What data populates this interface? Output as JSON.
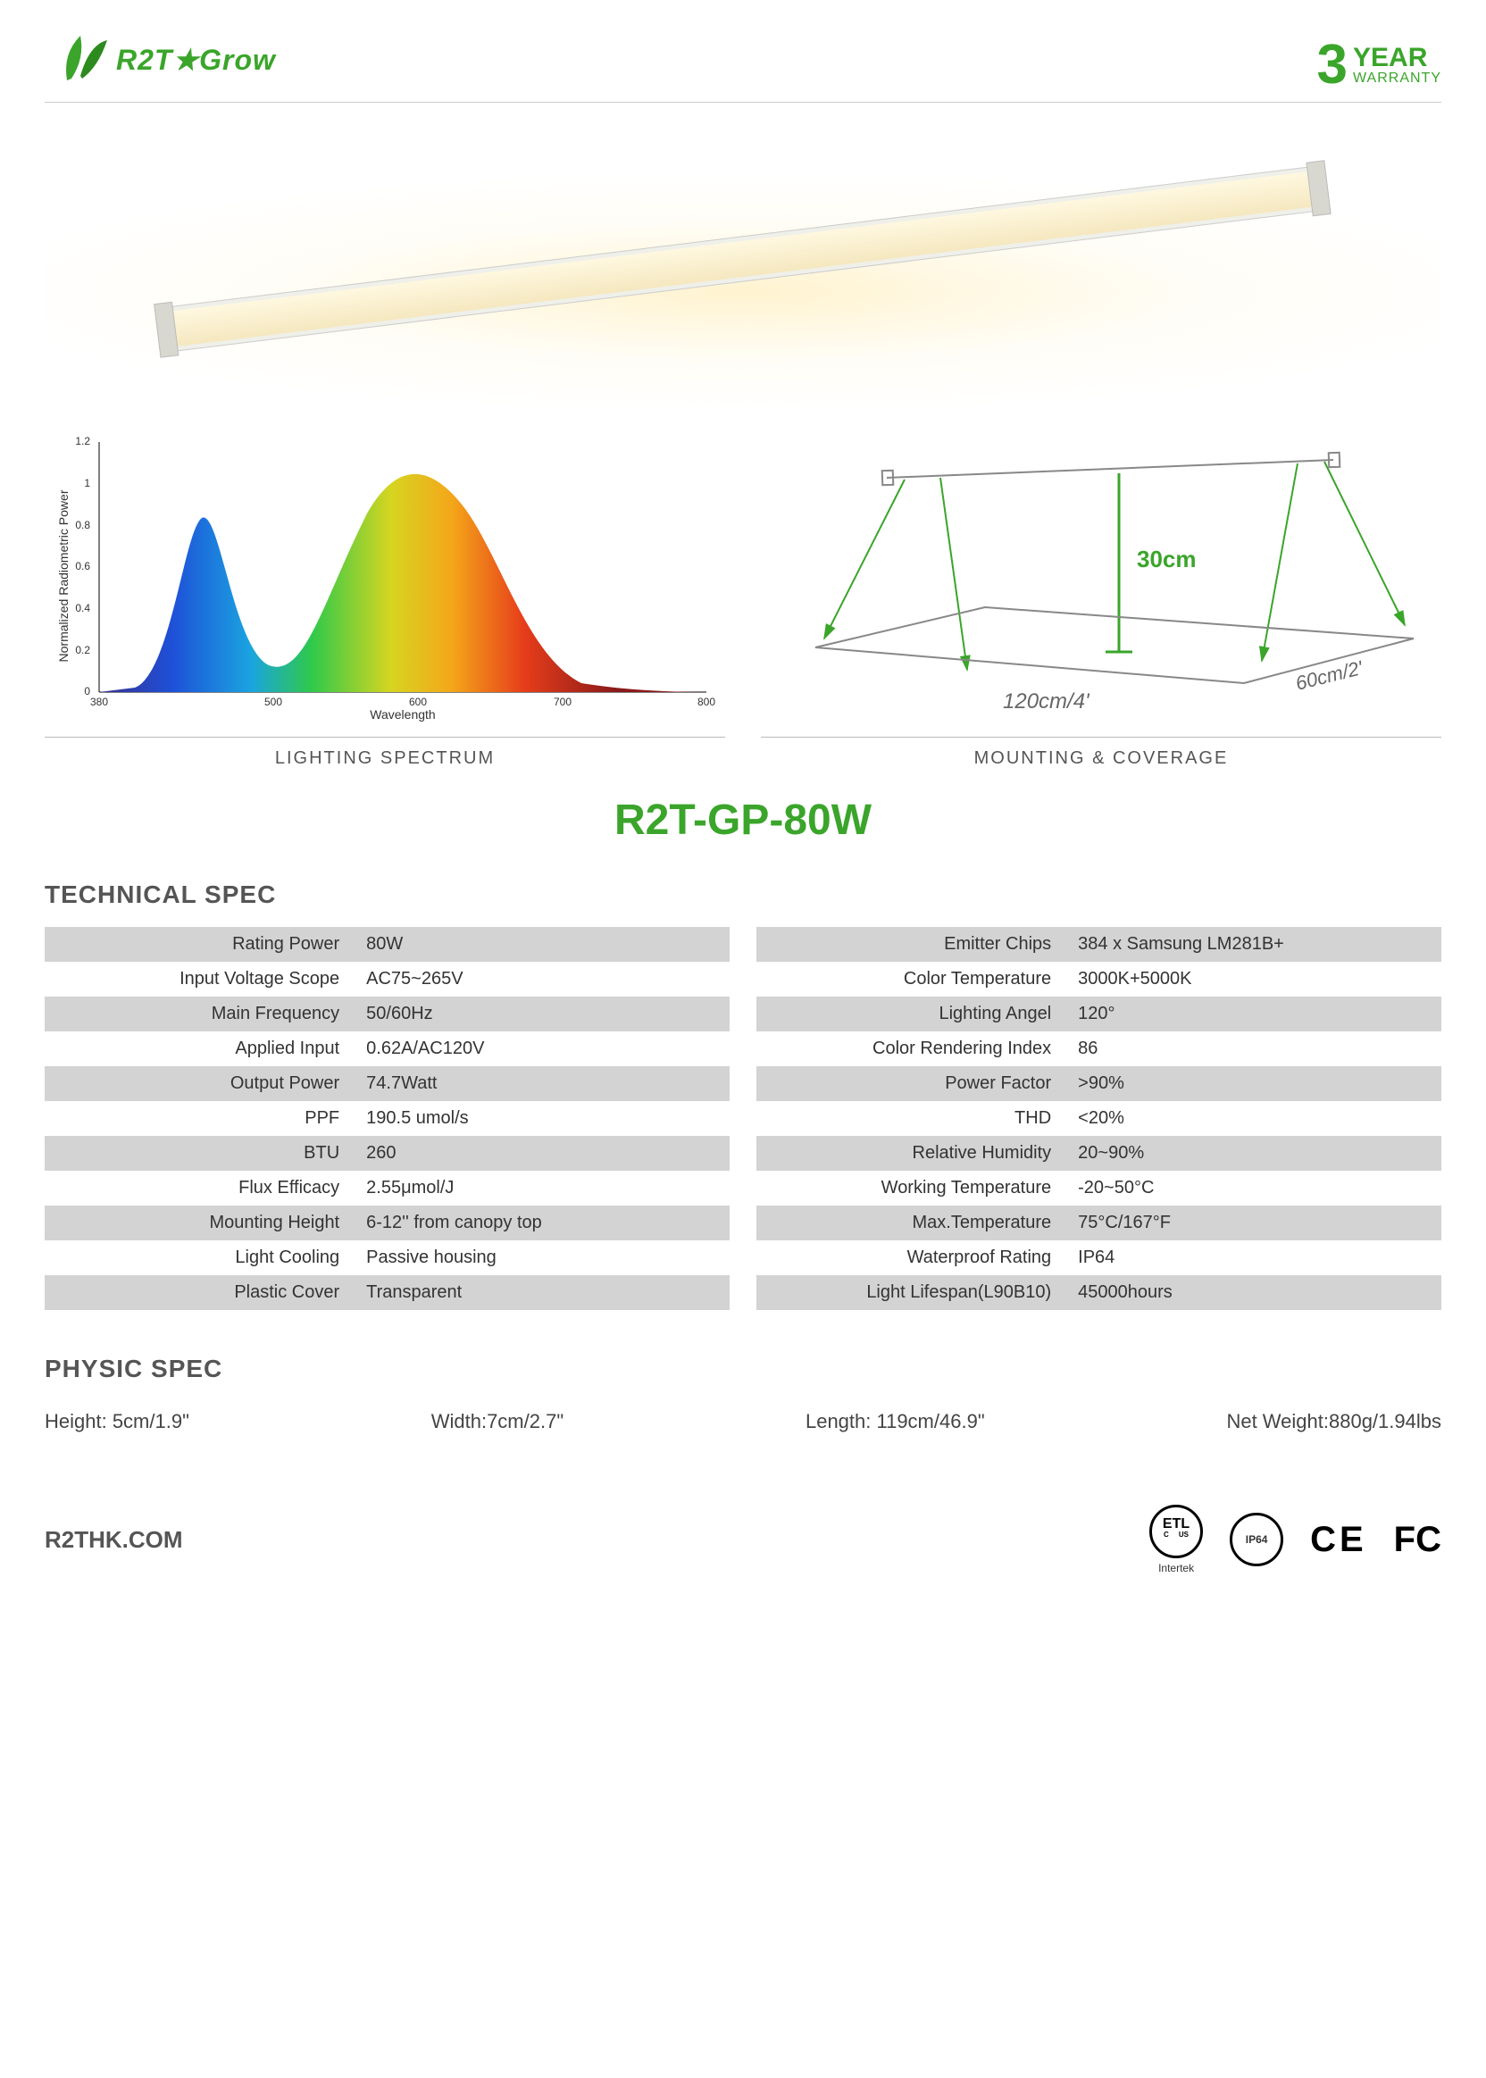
{
  "header": {
    "brand": "R2T★Grow",
    "warranty_num": "3",
    "warranty_year": "YEAR",
    "warranty_sub": "WARRANTY"
  },
  "diagrams": {
    "spectrum_caption": "LIGHTING SPECTRUM",
    "mounting_caption": "MOUNTING & COVERAGE",
    "spectrum": {
      "y_label": "Normalized Radiometric Power",
      "x_label": "Wavelength",
      "y_ticks": [
        "0",
        "0.2",
        "0.4",
        "0.6",
        "0.8",
        "1",
        "1.2"
      ],
      "x_ticks": [
        "380",
        "500",
        "600",
        "700",
        "800"
      ],
      "ylim": [
        0,
        1.2
      ],
      "xlim": [
        380,
        800
      ]
    },
    "mounting": {
      "height_label": "30cm",
      "width_label": "120cm/4'",
      "depth_label": "60cm/2'"
    }
  },
  "product_title": "R2T-GP-80W",
  "sections": {
    "technical": "TECHNICAL SPEC",
    "physic": "PHYSIC SPEC"
  },
  "specs_left": [
    {
      "k": "Rating Power",
      "v": "80W"
    },
    {
      "k": "Input Voltage Scope",
      "v": "AC75~265V"
    },
    {
      "k": "Main Frequency",
      "v": "50/60Hz"
    },
    {
      "k": "Applied Input",
      "v": "0.62A/AC120V"
    },
    {
      "k": "Output Power",
      "v": "74.7Watt"
    },
    {
      "k": "PPF",
      "v": "190.5 umol/s"
    },
    {
      "k": "BTU",
      "v": "260"
    },
    {
      "k": "Flux Efficacy",
      "v": "2.55μmol/J"
    },
    {
      "k": "Mounting Height",
      "v": "6-12'' from canopy top"
    },
    {
      "k": "Light Cooling",
      "v": "Passive housing"
    },
    {
      "k": "Plastic Cover",
      "v": "Transparent"
    }
  ],
  "specs_right": [
    {
      "k": "Emitter Chips",
      "v": "384 x Samsung LM281B+"
    },
    {
      "k": "Color Temperature",
      "v": "3000K+5000K"
    },
    {
      "k": "Lighting Angel",
      "v": "120°"
    },
    {
      "k": "Color Rendering Index",
      "v": "86"
    },
    {
      "k": "Power Factor",
      "v": ">90%"
    },
    {
      "k": "THD",
      "v": "<20%"
    },
    {
      "k": "Relative Humidity",
      "v": "20~90%"
    },
    {
      "k": "Working Temperature",
      "v": "-20~50°C"
    },
    {
      "k": "Max.Temperature",
      "v": "75°C/167°F"
    },
    {
      "k": "Waterproof Rating",
      "v": "IP64"
    },
    {
      "k": "Light Lifespan(L90B10)",
      "v": "45000hours"
    }
  ],
  "physic": {
    "height": "Height: 5cm/1.9\"",
    "width": "Width:7cm/2.7\"",
    "length": "Length: 119cm/46.9\"",
    "weight": "Net Weight:880g/1.94lbs"
  },
  "footer": {
    "url": "R2THK.COM",
    "certs": {
      "etl": "Intertek",
      "ip": "IP64",
      "ce": "CE",
      "fcc": "FC"
    }
  },
  "colors": {
    "brand_green": "#3aa52a",
    "table_gray": "#d3d3d3"
  }
}
